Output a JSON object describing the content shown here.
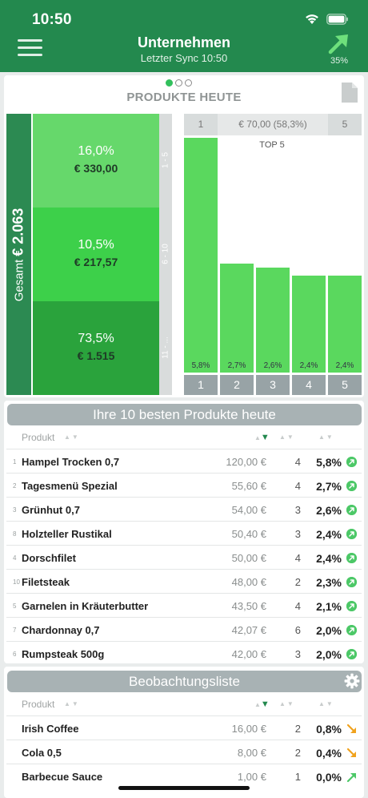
{
  "status": {
    "time": "10:50"
  },
  "header": {
    "title": "Unternehmen",
    "subtitle": "Letzter Sync 10:50",
    "trend_pct": "35%"
  },
  "products_card": {
    "heading": "PRODUKTE HEUTE",
    "pager": {
      "count": 3,
      "active": 0
    },
    "total_label": "Gesamt",
    "total_value": "€ 2.063",
    "segments": [
      {
        "pct": "16,0%",
        "value": "€ 330,00",
        "color": "#66d86b"
      },
      {
        "pct": "10,5%",
        "value": "€ 217,57",
        "color": "#3dd04a"
      },
      {
        "pct": "73,5%",
        "value": "€ 1.515",
        "color": "#2aa33c"
      }
    ],
    "ranges": [
      "1 - 5",
      "6 - 10",
      "11 - ..."
    ]
  },
  "chart_data": {
    "type": "bar",
    "header_left": "1",
    "header_center": "€ 70,00 (58,3%)",
    "header_right": "5",
    "title": "TOP 5",
    "categories": [
      "1",
      "2",
      "3",
      "4",
      "5"
    ],
    "values": [
      5.8,
      2.7,
      2.6,
      2.4,
      2.4
    ],
    "value_labels": [
      "5,8%",
      "2,7%",
      "2,6%",
      "2,4%",
      "2,4%"
    ],
    "ylim": [
      0,
      5.8
    ],
    "bar_color": "#5ad85e"
  },
  "top10": {
    "title": "Ihre 10 besten Produkte heute",
    "col_product": "Produkt",
    "rows": [
      {
        "rank": "1",
        "name": "Hampel Trocken 0,7",
        "price": "120,00 €",
        "qty": "4",
        "share": "5,8%"
      },
      {
        "rank": "2",
        "name": "Tagesmenü Spezial",
        "price": "55,60 €",
        "qty": "4",
        "share": "2,7%"
      },
      {
        "rank": "3",
        "name": "Grünhut 0,7",
        "price": "54,00 €",
        "qty": "3",
        "share": "2,6%"
      },
      {
        "rank": "8",
        "name": "Holzteller Rustikal",
        "price": "50,40 €",
        "qty": "3",
        "share": "2,4%"
      },
      {
        "rank": "4",
        "name": "Dorschfilet",
        "price": "50,00 €",
        "qty": "4",
        "share": "2,4%"
      },
      {
        "rank": "10",
        "name": "Filetsteak",
        "price": "48,00 €",
        "qty": "2",
        "share": "2,3%"
      },
      {
        "rank": "5",
        "name": "Garnelen in Kräuterbutter",
        "price": "43,50 €",
        "qty": "4",
        "share": "2,1%"
      },
      {
        "rank": "7",
        "name": "Chardonnay 0,7",
        "price": "42,07 €",
        "qty": "6",
        "share": "2,0%"
      },
      {
        "rank": "6",
        "name": "Rumpsteak 500g",
        "price": "42,00 €",
        "qty": "3",
        "share": "2,0%"
      }
    ]
  },
  "watchlist": {
    "title": "Beobachtungsliste",
    "col_product": "Produkt",
    "rows": [
      {
        "name": "Irish Coffee",
        "price": "16,00 €",
        "qty": "2",
        "share": "0,8%",
        "trend": "down"
      },
      {
        "name": "Cola 0,5",
        "price": "8,00 €",
        "qty": "2",
        "share": "0,4%",
        "trend": "down"
      },
      {
        "name": "Barbecue Sauce",
        "price": "1,00 €",
        "qty": "1",
        "share": "0,0%",
        "trend": "up"
      }
    ]
  }
}
